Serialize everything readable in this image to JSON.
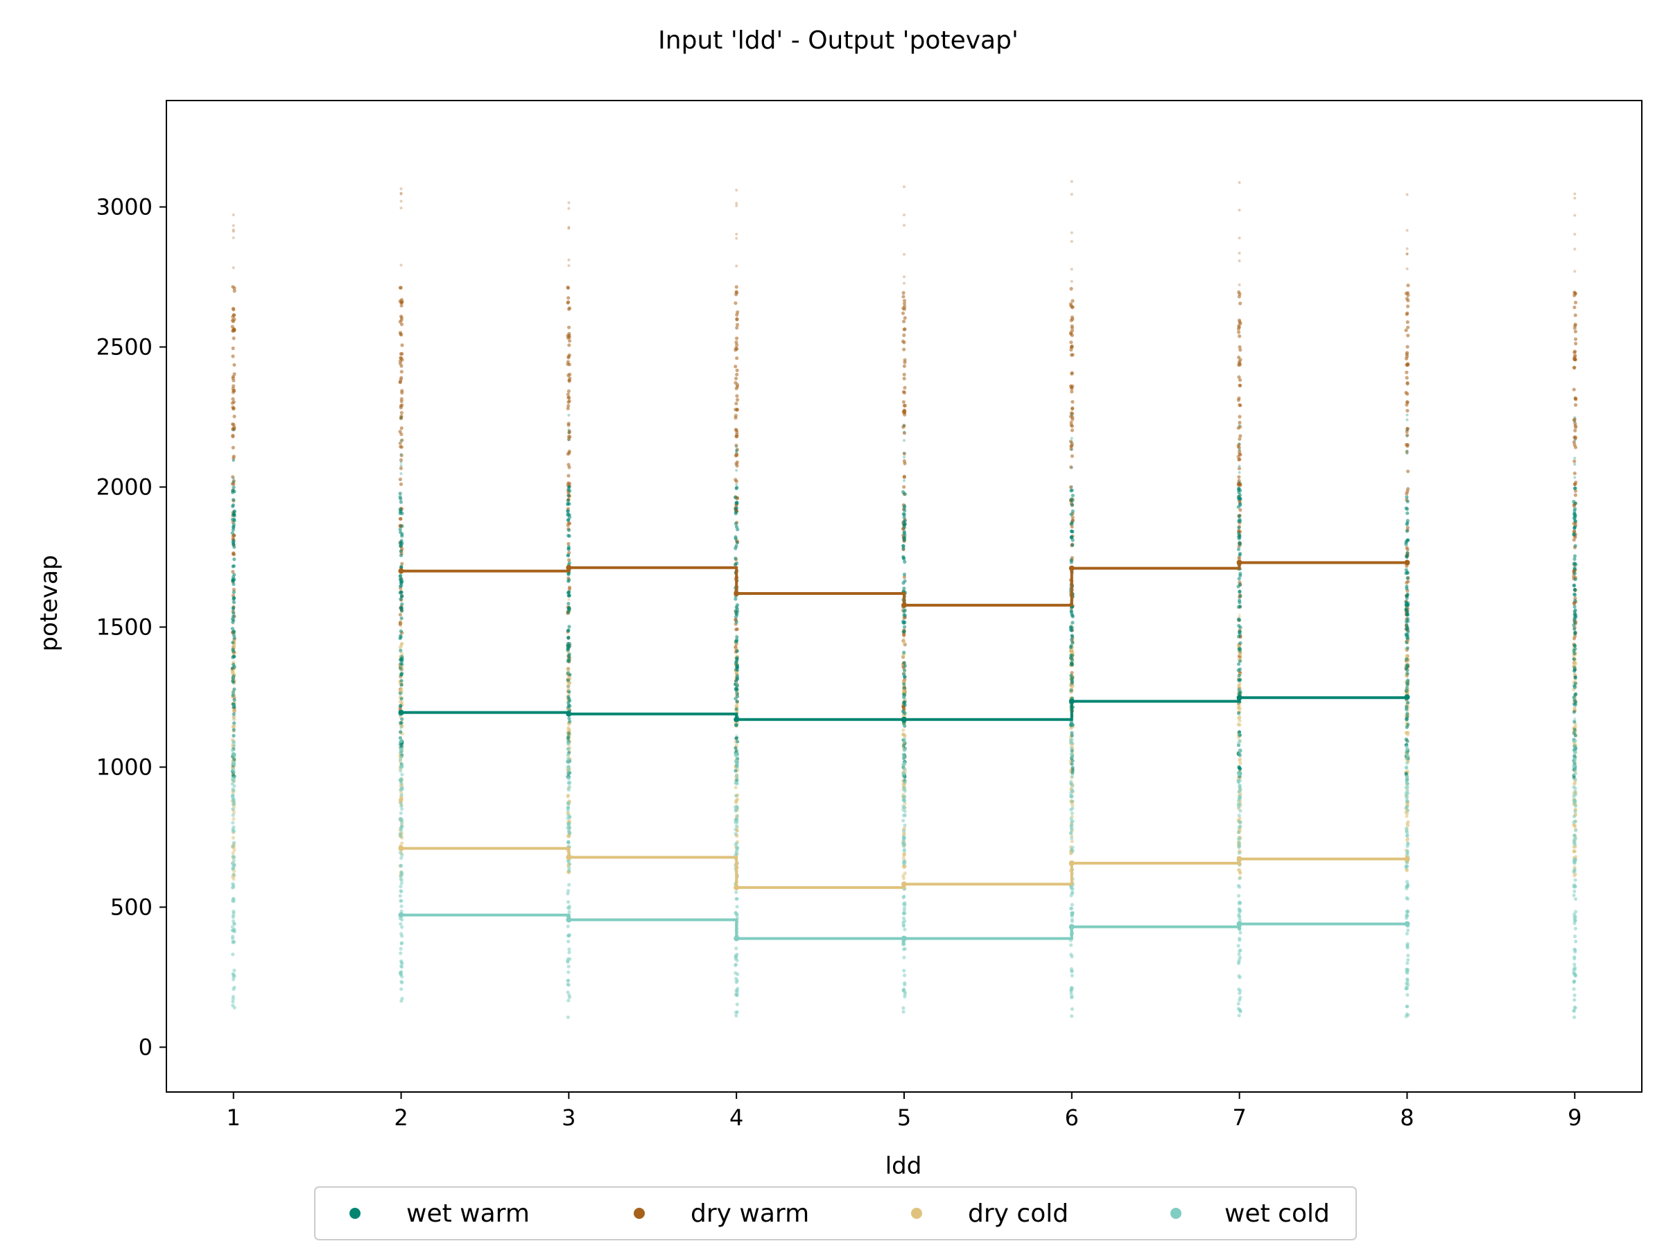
{
  "chart_data": {
    "type": "scatter",
    "title": "Input 'ldd' - Output 'potevap'",
    "xlabel": "ldd",
    "ylabel": "potevap",
    "xlim": [
      0.6,
      9.4
    ],
    "ylim": [
      -160,
      3380
    ],
    "xticks": [
      1,
      2,
      3,
      4,
      5,
      6,
      7,
      8,
      9
    ],
    "yticks": [
      0,
      500,
      1000,
      1500,
      2000,
      2500,
      3000
    ],
    "grid": false,
    "legend_position": "bottom-center",
    "columns": [
      1,
      2,
      3,
      4,
      5,
      6,
      7,
      8,
      9
    ],
    "series": [
      {
        "name": "wet warm",
        "color": "#018571",
        "scatter_range": [
          950,
          2000
        ],
        "step_x": [
          2,
          3,
          4,
          5,
          6,
          7,
          8
        ],
        "step_values": [
          1195,
          1190,
          1170,
          1170,
          1235,
          1248,
          1250
        ]
      },
      {
        "name": "dry warm",
        "color": "#a6611a",
        "scatter_range": [
          1200,
          2720
        ],
        "step_x": [
          2,
          3,
          4,
          5,
          6,
          7,
          8
        ],
        "step_values": [
          1700,
          1712,
          1620,
          1578,
          1710,
          1730,
          1730
        ]
      },
      {
        "name": "dry cold",
        "color": "#dfc27d",
        "scatter_range": [
          600,
          1450
        ],
        "step_x": [
          2,
          3,
          4,
          5,
          6,
          7,
          8
        ],
        "step_values": [
          710,
          678,
          570,
          582,
          657,
          672,
          672
        ]
      },
      {
        "name": "wet cold",
        "color": "#80cdc1",
        "scatter_range": [
          100,
          1100
        ],
        "step_x": [
          2,
          3,
          4,
          5,
          6,
          7,
          8
        ],
        "step_values": [
          472,
          455,
          388,
          388,
          430,
          440,
          440
        ]
      }
    ]
  }
}
